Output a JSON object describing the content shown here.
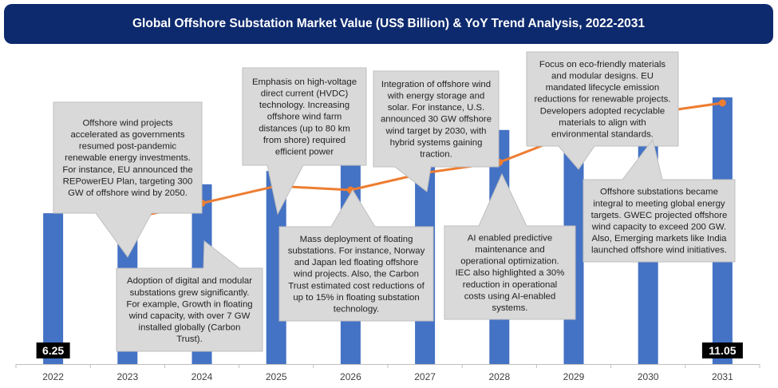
{
  "chart_data": {
    "type": "bar",
    "title": "Global Offshore Substation Market Value (US$ Billion) &  YoY Trend Analysis, 2022-2031",
    "categories": [
      "2022",
      "2023",
      "2024",
      "2025",
      "2026",
      "2027",
      "2028",
      "2029",
      "2030",
      "2031"
    ],
    "series": [
      {
        "type": "bar",
        "values": [
          6.25,
          6.85,
          7.45,
          8.0,
          8.55,
          9.1,
          9.7,
          10.2,
          10.65,
          11.05
        ]
      },
      {
        "type": "line",
        "values": [
          5.2,
          5.5,
          6.1,
          6.75,
          6.6,
          7.25,
          7.65,
          8.75,
          9.5,
          9.9
        ]
      }
    ],
    "data_labels": [
      {
        "category": "2022",
        "text": "6.25"
      },
      {
        "category": "2031",
        "text": "11.05"
      }
    ],
    "annotations": [
      {
        "year": "2023",
        "position": "above",
        "lines": [
          "Offshore wind projects",
          "accelerated as governments",
          "resumed post-pandemic",
          "renewable energy investments.",
          "For instance, EU announced the",
          "REPowerEU Plan, targeting 300",
          "GW of offshore wind by 2050."
        ]
      },
      {
        "year": "2024",
        "position": "below",
        "lines": [
          "Adoption of digital and modular",
          "substations grew significantly.",
          "For example, Growth in floating",
          "wind capacity, with over 7 GW",
          "installed globally (Carbon",
          "Trust)."
        ]
      },
      {
        "year": "2025",
        "position": "above",
        "lines": [
          "Emphasis on high-voltage",
          "direct current (HVDC)",
          "technology. Increasing",
          "offshore wind farm",
          "distances (up to 80 km",
          "from shore) required",
          "efficient power"
        ]
      },
      {
        "year": "2026",
        "position": "below",
        "lines": [
          "Mass deployment of floating",
          "substations. For instance, Norway",
          "and Japan led floating offshore",
          "wind projects. Also, the Carbon",
          "Trust estimated cost reductions of",
          "up to 15% in floating substation",
          "technology."
        ]
      },
      {
        "year": "2027",
        "position": "above",
        "lines": [
          "Integration of offshore wind",
          "with energy storage and",
          "solar. For instance, U.S.",
          "announced 30 GW offshore",
          "wind target by 2030, with",
          "hybrid systems gaining",
          "traction."
        ]
      },
      {
        "year": "2028",
        "position": "below",
        "lines": [
          "AI enabled predictive",
          "maintenance and",
          "operational optimization.",
          "IEC  also highlighted a 30%",
          "reduction in operational",
          "costs using AI-enabled",
          "systems."
        ]
      },
      {
        "year": "2029",
        "position": "above",
        "lines": [
          "Focus on eco-friendly materials",
          "and modular designs. EU",
          "mandated lifecycle emission",
          "reductions for renewable projects.",
          "Developers adopted recyclable",
          "materials to align with",
          "environmental standards."
        ]
      },
      {
        "year": "2030",
        "position": "below",
        "lines": [
          "Offshore substations became",
          "integral to meeting global energy",
          "targets. GWEC projected offshore",
          "wind capacity to exceed 200 GW.",
          "Also, Emerging markets like India",
          "launched offshore wind initiatives."
        ]
      }
    ],
    "colors": {
      "bar": "#4472c4",
      "line": "#ed7d31",
      "callout_fill": "#d9d9d9",
      "callout_stroke": "#bfbfbf",
      "title_bg": "#0d2a6e"
    }
  }
}
